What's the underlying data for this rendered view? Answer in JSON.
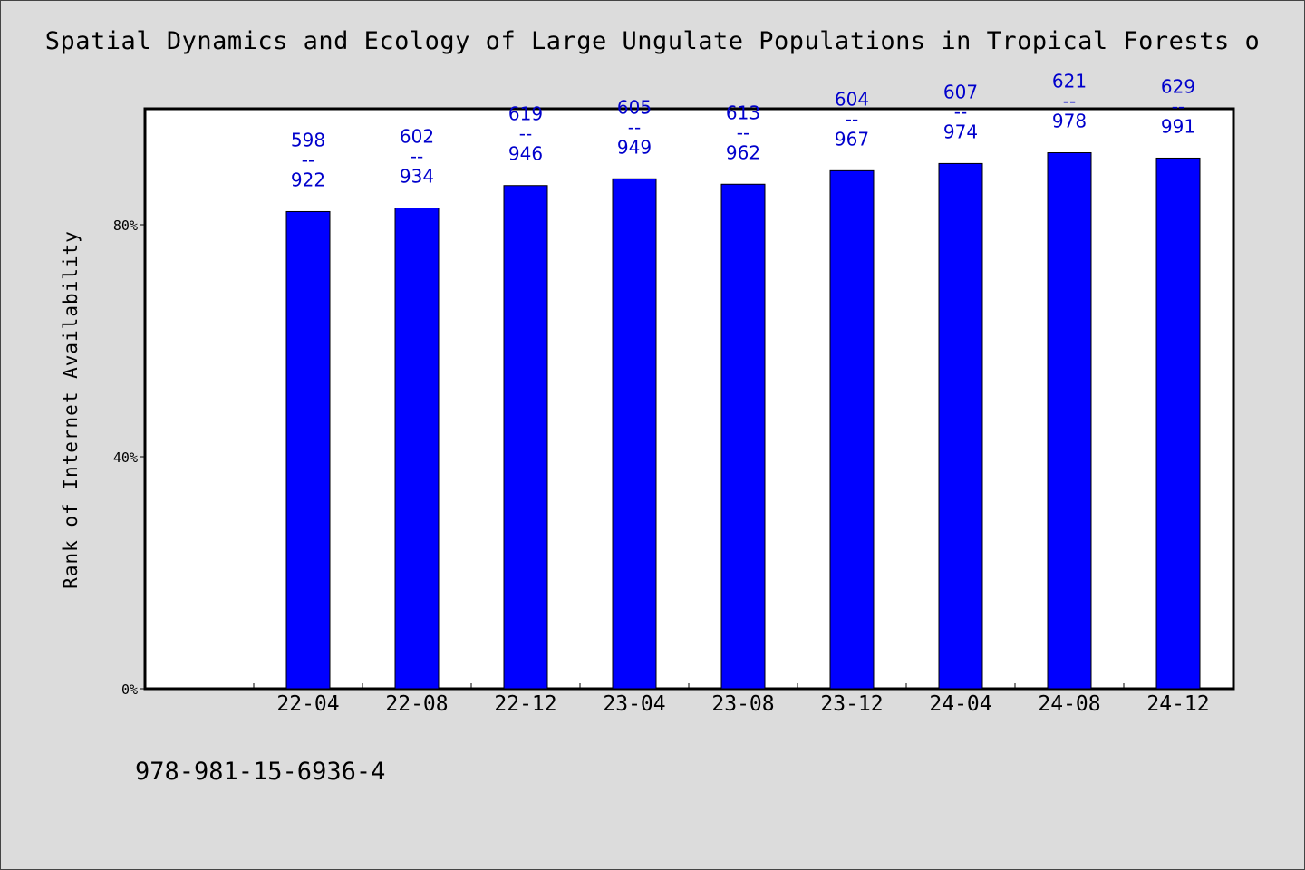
{
  "chart_data": {
    "type": "bar",
    "title": "Spatial Dynamics and Ecology of Large Ungulate Populations in Tropical Forests o",
    "xlabel": "",
    "ylabel": "Rank of Internet Availability",
    "categories": [
      "22-04",
      "22-08",
      "22-12",
      "23-04",
      "23-08",
      "23-12",
      "24-04",
      "24-08",
      "24-12"
    ],
    "values": [
      0.8227,
      0.8289,
      0.8676,
      0.8792,
      0.8699,
      0.8932,
      0.9056,
      0.9242,
      0.9149
    ],
    "data_labels": [
      {
        "top": "598",
        "sep": "--",
        "bottom": "922"
      },
      {
        "top": "602",
        "sep": "--",
        "bottom": "934"
      },
      {
        "top": "619",
        "sep": "--",
        "bottom": "946"
      },
      {
        "top": "605",
        "sep": "--",
        "bottom": "949"
      },
      {
        "top": "613",
        "sep": "--",
        "bottom": "962"
      },
      {
        "top": "604",
        "sep": "--",
        "bottom": "967"
      },
      {
        "top": "607",
        "sep": "--",
        "bottom": "974"
      },
      {
        "top": "621",
        "sep": "--",
        "bottom": "978"
      },
      {
        "top": "629",
        "sep": "--",
        "bottom": "991"
      }
    ],
    "yticks": [
      {
        "value": 0,
        "label": "0%"
      },
      {
        "value": 0.4,
        "label": "40%"
      },
      {
        "value": 0.8,
        "label": "80%"
      }
    ],
    "ylim": [
      0,
      1.0
    ],
    "grid": false,
    "bar_color": "#0000ff",
    "label_color": "#0000cc"
  },
  "footer_note": "978-981-15-6936-4"
}
